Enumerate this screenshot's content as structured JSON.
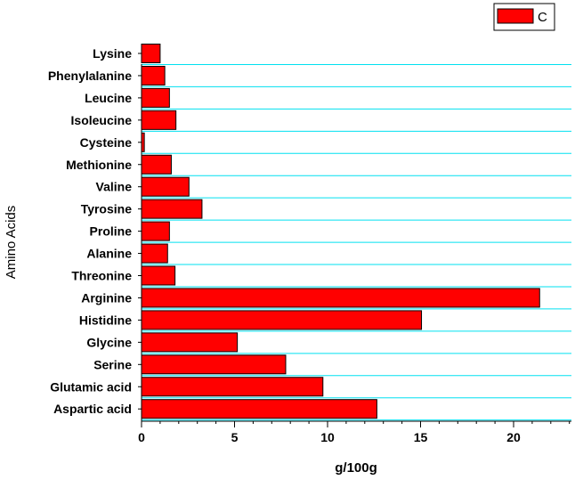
{
  "chart_data": {
    "type": "bar",
    "orientation": "horizontal",
    "categories": [
      "Lysine",
      "Phenylalanine",
      "Leucine",
      "Isoleucine",
      "Cysteine",
      "Methionine",
      "Valine",
      "Tyrosine",
      "Proline",
      "Alanine",
      "Threonine",
      "Arginine",
      "Histidine",
      "Glycine",
      "Serine",
      "Glutamic acid",
      "Aspartic acid"
    ],
    "series": [
      {
        "name": "C",
        "color": "#ff0000",
        "values": [
          1.0,
          1.25,
          1.5,
          1.85,
          0.15,
          1.6,
          2.55,
          3.25,
          1.5,
          1.4,
          1.8,
          21.4,
          15.05,
          5.15,
          7.75,
          9.75,
          12.65
        ]
      }
    ],
    "xlabel": "g/100g",
    "ylabel": "Amino Acids",
    "xlim": [
      0,
      23
    ],
    "xticks": [
      "0",
      "5",
      "10",
      "15",
      "20"
    ],
    "grid": "horizontal",
    "grid_color": "#00e0f0",
    "legend_position": "top-right",
    "bar_edge_color": "#000000"
  }
}
